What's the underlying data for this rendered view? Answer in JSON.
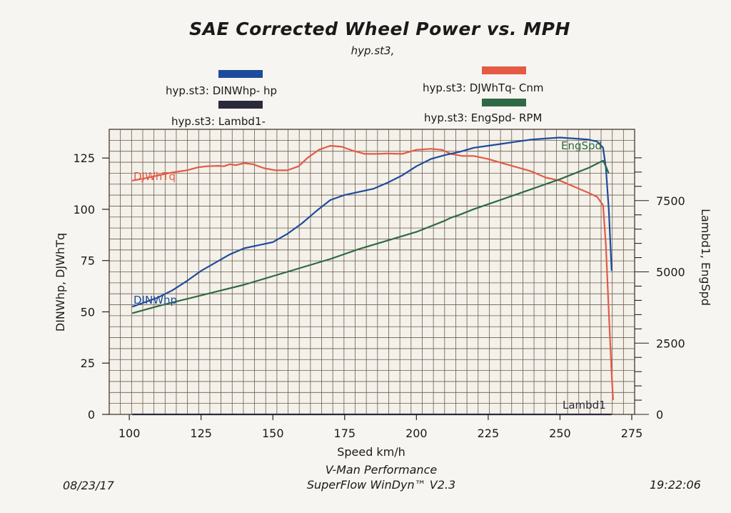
{
  "title": "SAE Corrected Wheel Power vs. MPH",
  "subtitle": "hyp.st3,",
  "legend": [
    {
      "label": "hyp.st3: DINWhp-  hp",
      "color": "#1e4b9c",
      "icon": "legend-swatch"
    },
    {
      "label": "hyp.st3: Lambd1-",
      "color": "#2b2a3c",
      "icon": "legend-swatch"
    },
    {
      "label": "hyp.st3: DJWhTq- Cnm",
      "color": "#e45a45",
      "icon": "legend-swatch"
    },
    {
      "label": "hyp.st3: EngSpd- RPM",
      "color": "#2f6a45",
      "icon": "legend-swatch"
    }
  ],
  "footer": {
    "date": "08/23/17",
    "company": "V-Man Performance",
    "software": "SuperFlow WinDyn™ V2.3",
    "time": "19:22:06"
  },
  "chart_data": {
    "type": "line",
    "xlabel": "Speed   km/h",
    "ylabel_left": "DINWhp, DJWhTq",
    "ylabel_right": "Lambd1, EngSpd",
    "xlim": [
      93,
      276
    ],
    "ylim_left": [
      0,
      139
    ],
    "ylim_right": [
      0,
      10000
    ],
    "x_ticks": [
      "100",
      "125",
      "150",
      "175",
      "200",
      "225",
      "250",
      "275"
    ],
    "y_left_ticks": [
      "0",
      "25",
      "50",
      "75",
      "100",
      "125"
    ],
    "y_right_ticks": [
      "0",
      "2500",
      "5000",
      "7500"
    ],
    "grid": true,
    "series": [
      {
        "name": "DJWhTq",
        "axis": "left",
        "color": "#e45a45",
        "x": [
          101,
          105,
          110,
          115,
          120,
          124,
          127,
          131,
          133,
          135,
          137,
          140,
          143,
          147,
          151,
          155,
          159,
          162,
          166,
          170,
          174,
          178,
          182,
          186,
          190,
          195,
          200,
          205,
          209,
          212,
          216,
          220,
          225,
          230,
          235,
          240,
          245,
          250,
          255,
          260,
          263,
          265,
          266,
          267,
          268,
          268.5
        ],
        "y": [
          114,
          115,
          116.5,
          118,
          119,
          120.5,
          121,
          121.2,
          121,
          122,
          121.5,
          122.5,
          122,
          120,
          119,
          119,
          121,
          125,
          129,
          131,
          130.5,
          128.5,
          127,
          127,
          127.2,
          127,
          129,
          129.5,
          129,
          127,
          126,
          126,
          124.5,
          122.5,
          120.5,
          118.5,
          115.5,
          114,
          111,
          108,
          106,
          102,
          82,
          50,
          20,
          7
        ]
      },
      {
        "name": "DINWhp",
        "axis": "left",
        "color": "#1e4b9c",
        "x": [
          101,
          105,
          110,
          115,
          120,
          125,
          130,
          135,
          140,
          145,
          150,
          155,
          160,
          165,
          170,
          175,
          180,
          185,
          190,
          195,
          200,
          205,
          210,
          215,
          220,
          225,
          230,
          235,
          240,
          245,
          250,
          255,
          260,
          263,
          265,
          266,
          267,
          268
        ],
        "y": [
          52.5,
          54.5,
          57,
          60.5,
          65,
          70,
          74,
          78,
          81,
          82.5,
          84,
          88,
          93,
          99,
          104.5,
          107,
          108.5,
          110,
          113,
          116.5,
          121,
          124.5,
          126.5,
          128,
          130,
          131,
          132,
          133,
          134,
          134.5,
          135,
          134.5,
          134,
          133,
          130,
          120,
          100,
          70
        ]
      },
      {
        "name": "EngSpd",
        "axis": "right",
        "color": "#2f6a45",
        "x": [
          101,
          110,
          120,
          130,
          140,
          150,
          160,
          170,
          180,
          190,
          200,
          210,
          212,
          215,
          220,
          230,
          240,
          250,
          255,
          260,
          263,
          265,
          266,
          267
        ],
        "y": [
          3550,
          3800,
          4050,
          4300,
          4550,
          4850,
          5150,
          5450,
          5800,
          6100,
          6400,
          6800,
          6900,
          7000,
          7200,
          7550,
          7900,
          8250,
          8450,
          8650,
          8800,
          8900,
          8700,
          8450
        ]
      },
      {
        "name": "Lambd1",
        "axis": "right",
        "color": "#2b2a3c",
        "x": [
          101,
          150,
          200,
          250,
          268
        ],
        "y": [
          0,
          0,
          0,
          0,
          0
        ]
      }
    ]
  }
}
